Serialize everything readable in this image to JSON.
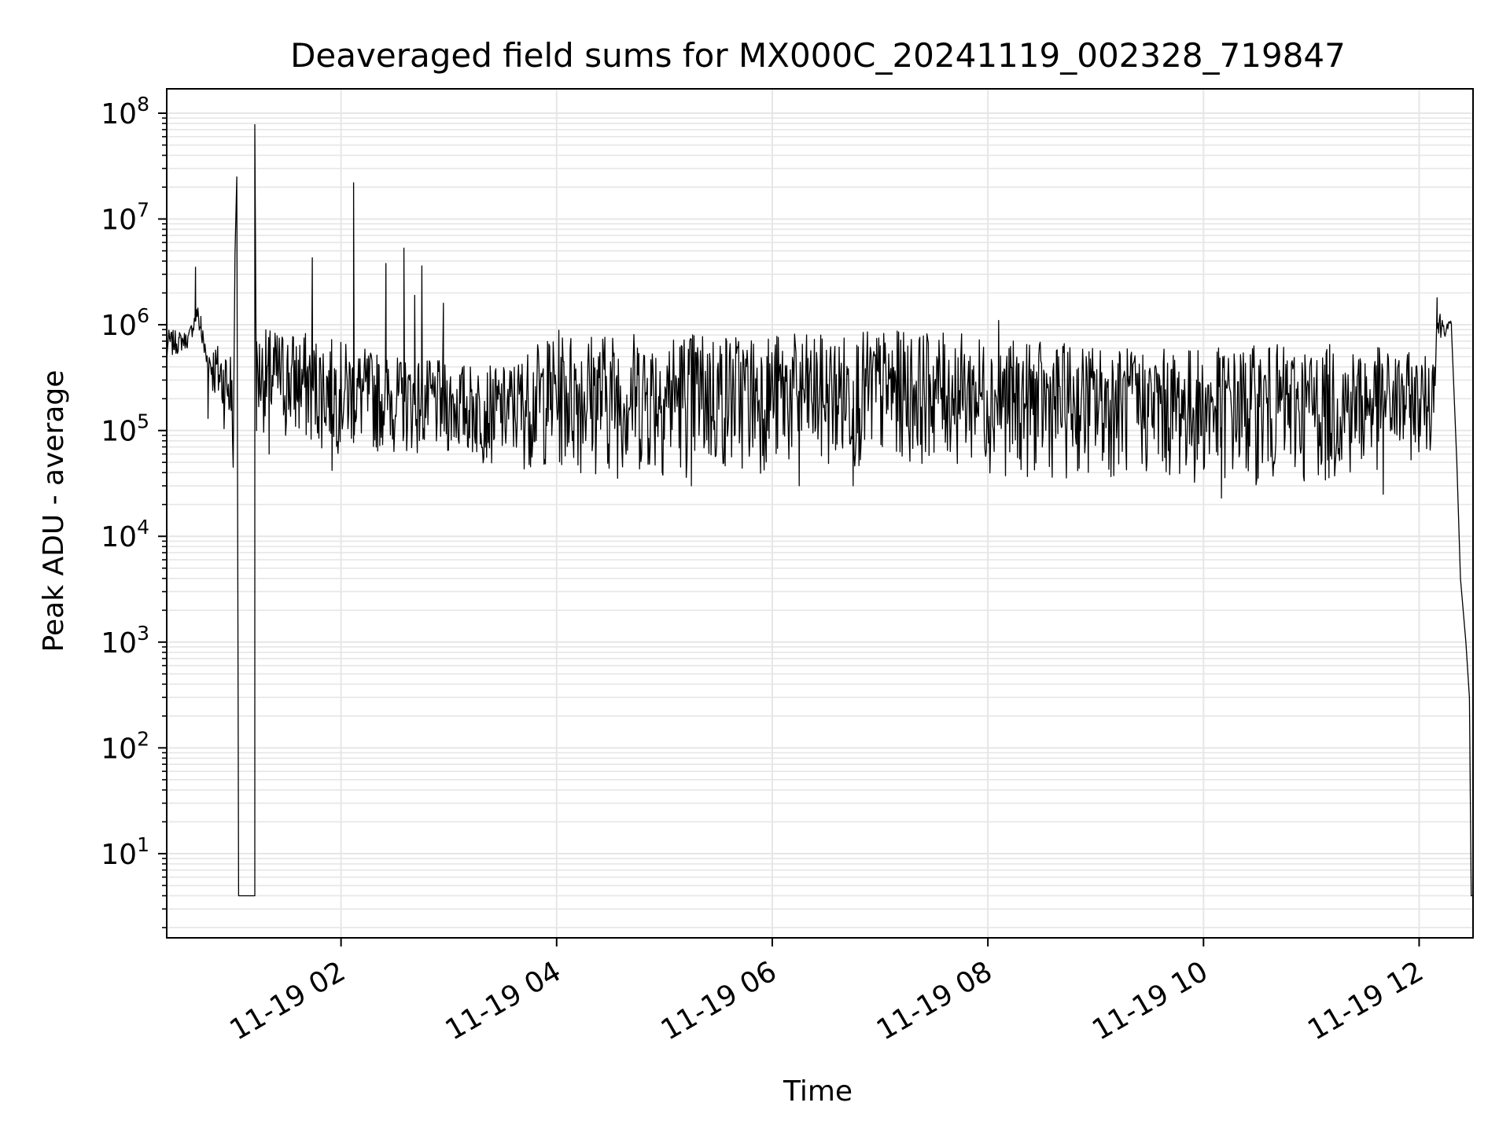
{
  "chart_data": {
    "type": "line",
    "title": "Deaveraged field sums for MX000C_20241119_002328_719847",
    "xlabel": "Time",
    "ylabel": "Peak ADU - average",
    "y_scale": "log",
    "ylim": [
      1.6,
      170000000
    ],
    "xlim": [
      "2024-11-19 00:23",
      "2024-11-19 12:30"
    ],
    "x_ticks": [
      {
        "x": "2024-11-19 02:00",
        "label": "11-19 02"
      },
      {
        "x": "2024-11-19 04:00",
        "label": "11-19 04"
      },
      {
        "x": "2024-11-19 06:00",
        "label": "11-19 06"
      },
      {
        "x": "2024-11-19 08:00",
        "label": "11-19 08"
      },
      {
        "x": "2024-11-19 10:00",
        "label": "11-19 10"
      },
      {
        "x": "2024-11-19 12:00",
        "label": "11-19 12"
      }
    ],
    "y_ticks": [
      {
        "y": 10,
        "base": "10",
        "exp": "1"
      },
      {
        "y": 100,
        "base": "10",
        "exp": "2"
      },
      {
        "y": 1000,
        "base": "10",
        "exp": "3"
      },
      {
        "y": 10000,
        "base": "10",
        "exp": "4"
      },
      {
        "y": 100000,
        "base": "10",
        "exp": "5"
      },
      {
        "y": 1000000,
        "base": "10",
        "exp": "6"
      },
      {
        "y": 10000000,
        "base": "10",
        "exp": "7"
      },
      {
        "y": 100000000,
        "base": "10",
        "exp": "8"
      }
    ],
    "grid": "major and minor",
    "series_color": "#000000",
    "grid_color": "#e6e6e6",
    "series": [
      {
        "envelope": [
          {
            "x": "2024-11-19 00:23",
            "low": 450000,
            "high": 900000
          },
          {
            "x": "2024-11-19 00:35",
            "low": 600000,
            "high": 850000
          },
          {
            "x": "2024-11-19 00:40",
            "low": 1000000,
            "high": 1600000
          },
          {
            "x": "2024-11-19 00:45",
            "low": 300000,
            "high": 700000
          },
          {
            "x": "2024-11-19 01:00",
            "low": 60000,
            "high": 650000
          },
          {
            "x": "2024-11-19 01:15",
            "low": 100000,
            "high": 900000
          },
          {
            "x": "2024-11-19 01:30",
            "low": 70000,
            "high": 950000
          },
          {
            "x": "2024-11-19 02:00",
            "low": 60000,
            "high": 700000
          },
          {
            "x": "2024-11-19 02:30",
            "low": 60000,
            "high": 500000
          },
          {
            "x": "2024-11-19 03:00",
            "low": 55000,
            "high": 450000
          },
          {
            "x": "2024-11-19 03:30",
            "low": 45000,
            "high": 400000
          },
          {
            "x": "2024-11-19 04:00",
            "low": 40000,
            "high": 900000
          },
          {
            "x": "2024-11-19 04:30",
            "low": 35000,
            "high": 900000
          },
          {
            "x": "2024-11-19 05:00",
            "low": 35000,
            "high": 900000
          },
          {
            "x": "2024-11-19 05:30",
            "low": 35000,
            "high": 900000
          },
          {
            "x": "2024-11-19 06:00",
            "low": 40000,
            "high": 850000
          },
          {
            "x": "2024-11-19 06:30",
            "low": 40000,
            "high": 800000
          },
          {
            "x": "2024-11-19 07:00",
            "low": 45000,
            "high": 900000
          },
          {
            "x": "2024-11-19 07:30",
            "low": 50000,
            "high": 850000
          },
          {
            "x": "2024-11-19 08:00",
            "low": 40000,
            "high": 800000
          },
          {
            "x": "2024-11-19 08:15",
            "low": 35000,
            "high": 700000
          },
          {
            "x": "2024-11-19 09:00",
            "low": 35000,
            "high": 650000
          },
          {
            "x": "2024-11-19 09:30",
            "low": 35000,
            "high": 600000
          },
          {
            "x": "2024-11-19 10:00",
            "low": 30000,
            "high": 600000
          },
          {
            "x": "2024-11-19 10:30",
            "low": 30000,
            "high": 650000
          },
          {
            "x": "2024-11-19 11:00",
            "low": 30000,
            "high": 650000
          },
          {
            "x": "2024-11-19 11:30",
            "low": 35000,
            "high": 650000
          },
          {
            "x": "2024-11-19 12:07",
            "low": 60000,
            "high": 500000
          },
          {
            "x": "2024-11-19 12:10",
            "low": 600000,
            "high": 1500000
          },
          {
            "x": "2024-11-19 12:15",
            "low": 800000,
            "high": 1100000
          }
        ],
        "points": [
          {
            "x": "2024-11-19 00:23",
            "y": 450000
          },
          {
            "x": "2024-11-19 00:30",
            "y": 750000
          },
          {
            "x": "2024-11-19 00:39",
            "y": 3500000
          },
          {
            "x": "2024-11-19 00:42",
            "y": 1200000
          },
          {
            "x": "2024-11-19 00:44",
            "y": 600000
          },
          {
            "x": "2024-11-19 00:46",
            "y": 130000
          },
          {
            "x": "2024-11-19 00:50",
            "y": 400000
          },
          {
            "x": "2024-11-19 01:00",
            "y": 45000
          },
          {
            "x": "2024-11-19 01:01",
            "y": 4700000
          },
          {
            "x": "2024-11-19 01:02",
            "y": 25000000
          },
          {
            "x": "2024-11-19 01:03",
            "y": 4
          },
          {
            "x": "2024-11-19 01:12",
            "y": 4
          },
          {
            "x": "2024-11-19 01:12",
            "y": 78000000
          },
          {
            "x": "2024-11-19 01:13",
            "y": 100000
          },
          {
            "x": "2024-11-19 01:20",
            "y": 60000
          },
          {
            "x": "2024-11-19 01:44",
            "y": 4300000
          },
          {
            "x": "2024-11-19 01:55",
            "y": 42000
          },
          {
            "x": "2024-11-19 02:07",
            "y": 22000000
          },
          {
            "x": "2024-11-19 02:25",
            "y": 3800000
          },
          {
            "x": "2024-11-19 02:35",
            "y": 5300000
          },
          {
            "x": "2024-11-19 02:41",
            "y": 1900000
          },
          {
            "x": "2024-11-19 02:45",
            "y": 3600000
          },
          {
            "x": "2024-11-19 02:57",
            "y": 1600000
          },
          {
            "x": "2024-11-19 05:15",
            "y": 30000
          },
          {
            "x": "2024-11-19 06:15",
            "y": 30000
          },
          {
            "x": "2024-11-19 06:45",
            "y": 30000
          },
          {
            "x": "2024-11-19 08:06",
            "y": 1100000
          },
          {
            "x": "2024-11-19 10:10",
            "y": 23000
          },
          {
            "x": "2024-11-19 11:40",
            "y": 25000
          },
          {
            "x": "2024-11-19 12:10",
            "y": 1800000
          },
          {
            "x": "2024-11-19 12:18",
            "y": 900000
          },
          {
            "x": "2024-11-19 12:21",
            "y": 50000
          },
          {
            "x": "2024-11-19 12:23",
            "y": 4000
          },
          {
            "x": "2024-11-19 12:26",
            "y": 1000
          },
          {
            "x": "2024-11-19 12:28",
            "y": 300
          },
          {
            "x": "2024-11-19 12:29",
            "y": 4
          },
          {
            "x": "2024-11-19 12:30",
            "y": 4
          }
        ]
      }
    ]
  }
}
